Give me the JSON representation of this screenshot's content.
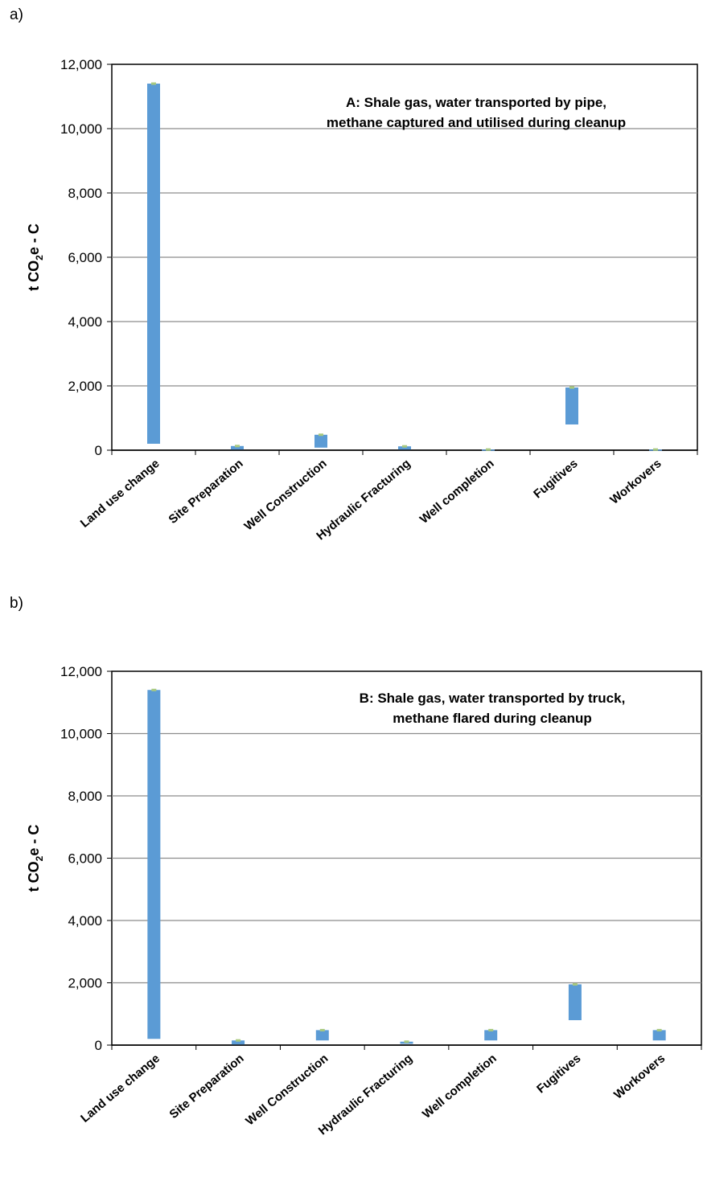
{
  "panels": [
    {
      "label": "a)"
    },
    {
      "label": "b)"
    }
  ],
  "chart_data": [
    {
      "type": "bar",
      "title_lines": [
        "A: Shale gas, water transported by pipe,",
        "methane captured and utilised during cleanup"
      ],
      "ylabel": "t CO2e - C",
      "ylabel_parts": {
        "pre": "t CO",
        "sub": "2",
        "post": "e - C"
      },
      "xlabel": "",
      "ylim": [
        0,
        12000
      ],
      "yticks": [
        0,
        2000,
        4000,
        6000,
        8000,
        10000,
        12000
      ],
      "ytick_labels": [
        "0",
        "2,000",
        "4,000",
        "6,000",
        "8,000",
        "10,000",
        "12,000"
      ],
      "categories": [
        "Land use change",
        "Site Preparation",
        "Well Construction",
        "Hydraulic Fracturing",
        "Well completion",
        "Fugitives",
        "Workovers"
      ],
      "floating_ranges": [
        [
          200,
          11400
        ],
        [
          20,
          130
        ],
        [
          80,
          480
        ],
        [
          20,
          120
        ],
        [
          0,
          20
        ],
        [
          800,
          1950
        ],
        [
          0,
          20
        ]
      ],
      "bar_color": "#5B9BD5",
      "marker_color": "#A8C97F",
      "grid": true,
      "legend": "none"
    },
    {
      "type": "bar",
      "title_lines": [
        "B: Shale gas, water transported by truck,",
        "methane flared during cleanup"
      ],
      "ylabel": "t CO2e - C",
      "ylabel_parts": {
        "pre": "t CO",
        "sub": "2",
        "post": "e - C"
      },
      "xlabel": "",
      "ylim": [
        0,
        12000
      ],
      "yticks": [
        0,
        2000,
        4000,
        6000,
        8000,
        10000,
        12000
      ],
      "ytick_labels": [
        "0",
        "2,000",
        "4,000",
        "6,000",
        "8,000",
        "10,000",
        "12,000"
      ],
      "categories": [
        "Land use change",
        "Site Preparation",
        "Well Construction",
        "Hydraulic Fracturing",
        "Well completion",
        "Fugitives",
        "Workovers"
      ],
      "floating_ranges": [
        [
          200,
          11400
        ],
        [
          20,
          150
        ],
        [
          150,
          480
        ],
        [
          40,
          110
        ],
        [
          150,
          480
        ],
        [
          800,
          1950
        ],
        [
          150,
          480
        ]
      ],
      "bar_color": "#5B9BD5",
      "marker_color": "#A8C97F",
      "grid": true,
      "legend": "none"
    }
  ]
}
